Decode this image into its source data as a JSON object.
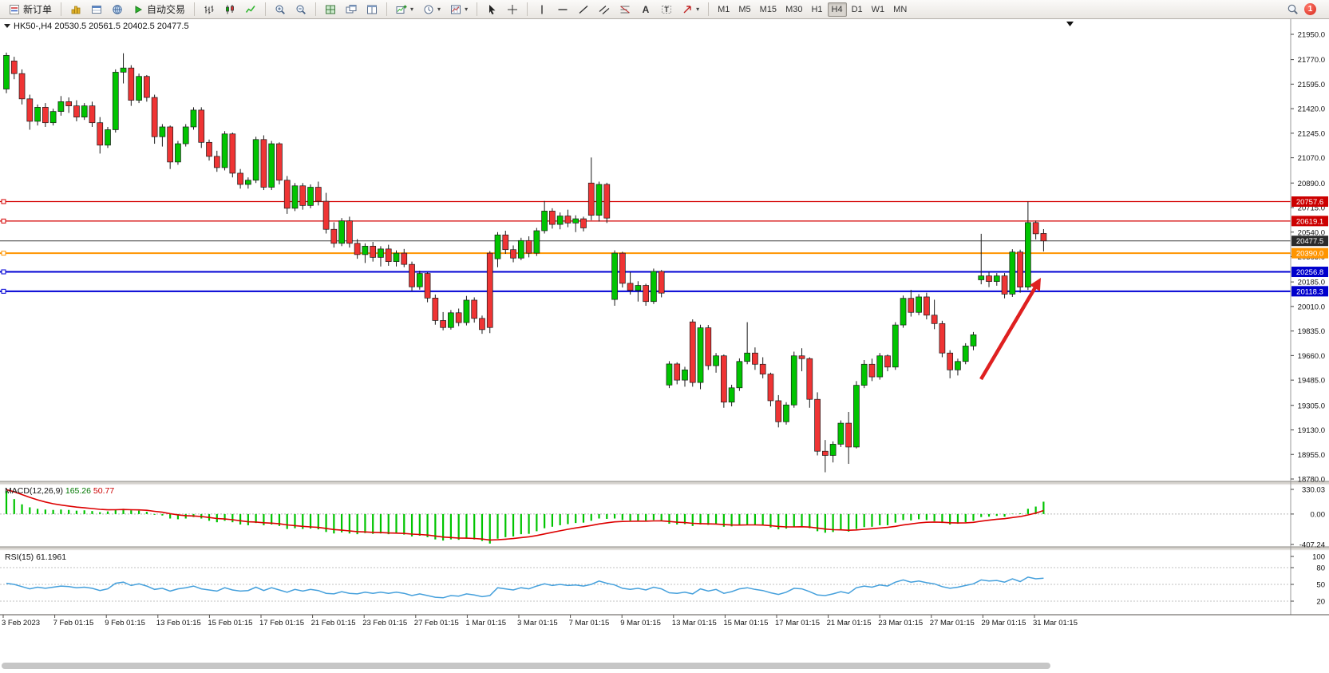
{
  "toolbar": {
    "new_order_label": "新订单",
    "auto_trading_label": "自动交易",
    "text_tool_label": "A",
    "label_tool_label": "T",
    "timeframes": [
      "M1",
      "M5",
      "M15",
      "M30",
      "H1",
      "H4",
      "D1",
      "W1",
      "MN"
    ],
    "active_timeframe": "H4",
    "notification_badge": "1"
  },
  "window": {
    "title_symbol": "HK50-,H4",
    "title_ohlc": "20530.5 20561.5 20402.5 20477.5"
  },
  "chart_data": {
    "type": "candlestick",
    "symbol": "HK50-,H4",
    "price_range": {
      "max": 21950.0,
      "min": 18780.0
    },
    "price_axis_labels": [
      "21950.0",
      "21770.0",
      "21595.0",
      "21420.0",
      "21245.0",
      "21070.0",
      "20890.0",
      "20715.0",
      "20540.0",
      "20365.0",
      "20185.0",
      "20010.0",
      "19835.0",
      "19660.0",
      "19485.0",
      "19305.0",
      "19130.0",
      "18955.0",
      "18780.0"
    ],
    "horizontal_lines": [
      {
        "value": 20757.6,
        "label": "20757.6",
        "color": "#d40000",
        "width": 1.2,
        "badge": "#cc0000",
        "handle": true
      },
      {
        "value": 20619.1,
        "label": "20619.1",
        "color": "#d40000",
        "width": 1.2,
        "badge": "#cc0000",
        "handle": true
      },
      {
        "value": 20477.5,
        "label": "20477.5",
        "color": "#3c3c3c",
        "width": 1,
        "badge": "#2b2b2b",
        "handle": false
      },
      {
        "value": 20390.0,
        "label": "20390.0",
        "color": "#ff9500",
        "width": 2,
        "badge": "#ff9500",
        "handle": true
      },
      {
        "value": 20256.8,
        "label": "20256.8",
        "color": "#0000d4",
        "width": 2,
        "badge": "#0000cc",
        "handle": true
      },
      {
        "value": 20118.3,
        "label": "20118.3",
        "color": "#0000d4",
        "width": 2,
        "badge": "#0000cc",
        "handle": true
      }
    ],
    "date_labels": [
      "3 Feb 2023",
      "7 Feb 01:15",
      "9 Feb 01:15",
      "13 Feb 01:15",
      "15 Feb 01:15",
      "17 Feb 01:15",
      "21 Feb 01:15",
      "23 Feb 01:15",
      "27 Feb 01:15",
      "1 Mar 01:15",
      "3 Mar 01:15",
      "7 Mar 01:15",
      "9 Mar 01:15",
      "13 Mar 01:15",
      "15 Mar 01:15",
      "17 Mar 01:15",
      "21 Mar 01:15",
      "23 Mar 01:15",
      "27 Mar 01:15",
      "29 Mar 01:15",
      "31 Mar 01:15"
    ],
    "candles_ohlc": [
      [
        21560,
        21820,
        21530,
        21800
      ],
      [
        21760,
        21790,
        21630,
        21670
      ],
      [
        21670,
        21700,
        21450,
        21490
      ],
      [
        21490,
        21520,
        21270,
        21330
      ],
      [
        21330,
        21450,
        21300,
        21430
      ],
      [
        21430,
        21460,
        21290,
        21320
      ],
      [
        21320,
        21420,
        21300,
        21400
      ],
      [
        21400,
        21510,
        21370,
        21470
      ],
      [
        21470,
        21500,
        21390,
        21440
      ],
      [
        21440,
        21480,
        21330,
        21360
      ],
      [
        21360,
        21460,
        21340,
        21440
      ],
      [
        21440,
        21470,
        21290,
        21320
      ],
      [
        21320,
        21360,
        21100,
        21160
      ],
      [
        21160,
        21290,
        21140,
        21270
      ],
      [
        21270,
        21700,
        21250,
        21680
      ],
      [
        21680,
        21815,
        21600,
        21710
      ],
      [
        21710,
        21730,
        21440,
        21480
      ],
      [
        21480,
        21670,
        21460,
        21650
      ],
      [
        21650,
        21660,
        21470,
        21500
      ],
      [
        21500,
        21520,
        21170,
        21220
      ],
      [
        21220,
        21310,
        21150,
        21290
      ],
      [
        21290,
        21300,
        20990,
        21040
      ],
      [
        21040,
        21190,
        21020,
        21170
      ],
      [
        21170,
        21310,
        21150,
        21290
      ],
      [
        21290,
        21430,
        21270,
        21410
      ],
      [
        21410,
        21430,
        21140,
        21180
      ],
      [
        21180,
        21200,
        21050,
        21080
      ],
      [
        21080,
        21120,
        20970,
        21000
      ],
      [
        21000,
        21260,
        20980,
        21240
      ],
      [
        21240,
        21250,
        20930,
        20960
      ],
      [
        20960,
        20990,
        20850,
        20880
      ],
      [
        20880,
        20930,
        20850,
        20910
      ],
      [
        20910,
        21220,
        20890,
        21200
      ],
      [
        21200,
        21230,
        20840,
        20860
      ],
      [
        20860,
        21190,
        20840,
        21170
      ],
      [
        21170,
        21180,
        20880,
        20910
      ],
      [
        20910,
        20940,
        20670,
        20710
      ],
      [
        20710,
        20890,
        20690,
        20870
      ],
      [
        20870,
        20890,
        20700,
        20730
      ],
      [
        20730,
        20880,
        20710,
        20860
      ],
      [
        20860,
        20900,
        20730,
        20760
      ],
      [
        20760,
        20820,
        20530,
        20560
      ],
      [
        20560,
        20610,
        20430,
        20460
      ],
      [
        20460,
        20640,
        20440,
        20620
      ],
      [
        20620,
        20650,
        20430,
        20460
      ],
      [
        20460,
        20490,
        20350,
        20380
      ],
      [
        20380,
        20460,
        20320,
        20440
      ],
      [
        20440,
        20470,
        20330,
        20360
      ],
      [
        20360,
        20440,
        20295,
        20420
      ],
      [
        20420,
        20450,
        20300,
        20330
      ],
      [
        20330,
        20410,
        20295,
        20390
      ],
      [
        20390,
        20420,
        20290,
        20310
      ],
      [
        20310,
        20330,
        20120,
        20150
      ],
      [
        20150,
        20265,
        20130,
        20245
      ],
      [
        20245,
        20255,
        20040,
        20070
      ],
      [
        20070,
        20095,
        19880,
        19910
      ],
      [
        19910,
        19970,
        19840,
        19860
      ],
      [
        19860,
        19985,
        19845,
        19965
      ],
      [
        19965,
        19995,
        19870,
        19895
      ],
      [
        19895,
        20085,
        19875,
        20055
      ],
      [
        20055,
        20075,
        19895,
        19925
      ],
      [
        19925,
        19945,
        19815,
        19845
      ],
      [
        20390,
        20405,
        19820,
        19860
      ],
      [
        20350,
        20540,
        20290,
        20520
      ],
      [
        20520,
        20550,
        20385,
        20415
      ],
      [
        20415,
        20445,
        20325,
        20355
      ],
      [
        20355,
        20500,
        20340,
        20480
      ],
      [
        20480,
        20510,
        20360,
        20390
      ],
      [
        20390,
        20570,
        20370,
        20550
      ],
      [
        20550,
        20762,
        20530,
        20690
      ],
      [
        20690,
        20710,
        20565,
        20595
      ],
      [
        20595,
        20680,
        20560,
        20655
      ],
      [
        20655,
        20700,
        20575,
        20605
      ],
      [
        20605,
        20660,
        20540,
        20635
      ],
      [
        20635,
        20650,
        20545,
        20570
      ],
      [
        20890,
        21072,
        20625,
        20660
      ],
      [
        20660,
        20900,
        20615,
        20880
      ],
      [
        20880,
        20892,
        20605,
        20640
      ],
      [
        20060,
        20410,
        20015,
        20390
      ],
      [
        20390,
        20400,
        20145,
        20175
      ],
      [
        20175,
        20255,
        20095,
        20125
      ],
      [
        20125,
        20190,
        20045,
        20160
      ],
      [
        20160,
        20172,
        20015,
        20045
      ],
      [
        20045,
        20280,
        20028,
        20260
      ],
      [
        20260,
        20270,
        20075,
        20105
      ],
      [
        19450,
        19620,
        19428,
        19600
      ],
      [
        19600,
        19612,
        19455,
        19485
      ],
      [
        19485,
        19580,
        19438,
        19558
      ],
      [
        19900,
        19918,
        19438,
        19468
      ],
      [
        19468,
        19880,
        19420,
        19858
      ],
      [
        19858,
        19878,
        19558,
        19588
      ],
      [
        19588,
        19678,
        19538,
        19658
      ],
      [
        19658,
        19668,
        19288,
        19328
      ],
      [
        19328,
        19452,
        19298,
        19430
      ],
      [
        19430,
        19640,
        19408,
        19618
      ],
      [
        19618,
        19898,
        19598,
        19678
      ],
      [
        19678,
        19718,
        19558,
        19598
      ],
      [
        19598,
        19648,
        19498,
        19528
      ],
      [
        19528,
        19538,
        19298,
        19338
      ],
      [
        19338,
        19378,
        19148,
        19188
      ],
      [
        19188,
        19328,
        19168,
        19308
      ],
      [
        19308,
        19688,
        19288,
        19658
      ],
      [
        19658,
        19712,
        19548,
        19638
      ],
      [
        19638,
        19648,
        19288,
        19348
      ],
      [
        19348,
        19398,
        18948,
        18978
      ],
      [
        18978,
        19058,
        18828,
        18948
      ],
      [
        18948,
        19048,
        18898,
        19028
      ],
      [
        19028,
        19198,
        19008,
        19178
      ],
      [
        19178,
        19258,
        18888,
        19008
      ],
      [
        19008,
        19478,
        18998,
        19448
      ],
      [
        19448,
        19628,
        19428,
        19598
      ],
      [
        19598,
        19638,
        19478,
        19508
      ],
      [
        19508,
        19678,
        19488,
        19658
      ],
      [
        19658,
        19668,
        19548,
        19578
      ],
      [
        19578,
        19898,
        19558,
        19878
      ],
      [
        19878,
        20088,
        19858,
        20068
      ],
      [
        20068,
        20128,
        19938,
        19968
      ],
      [
        19968,
        20098,
        19948,
        20078
      ],
      [
        20078,
        20108,
        19918,
        19948
      ],
      [
        19948,
        20058,
        19848,
        19888
      ],
      [
        19888,
        19908,
        19648,
        19678
      ],
      [
        19678,
        19698,
        19498,
        19558
      ],
      [
        19558,
        19638,
        19518,
        19618
      ],
      [
        19618,
        19748,
        19598,
        19728
      ],
      [
        19728,
        19828,
        19698,
        19808
      ],
      [
        20200,
        20528,
        20168,
        20228
      ],
      [
        20228,
        20258,
        20148,
        20188
      ],
      [
        20188,
        20248,
        20158,
        20228
      ],
      [
        20228,
        20248,
        20068,
        20098
      ],
      [
        20098,
        20418,
        20078,
        20398
      ],
      [
        20398,
        20415,
        20108,
        20148
      ],
      [
        20148,
        20758,
        20128,
        20608
      ],
      [
        20608,
        20622,
        20488,
        20528
      ],
      [
        20530.5,
        20561.5,
        20402.5,
        20477.5
      ]
    ],
    "indicators": {
      "macd": {
        "label": "MACD(12,26,9)",
        "main_value": "165.26",
        "signal_value": "50.77",
        "axis_labels": [
          "330.03",
          "0.00",
          "-407.24"
        ],
        "range": {
          "max": 330.03,
          "min": -407.24
        },
        "histogram": [
          310,
          200,
          130,
          90,
          70,
          60,
          55,
          60,
          55,
          45,
          50,
          40,
          25,
          35,
          60,
          70,
          50,
          45,
          30,
          -10,
          -20,
          -60,
          -70,
          -60,
          -40,
          -60,
          -90,
          -110,
          -90,
          -110,
          -140,
          -150,
          -120,
          -150,
          -140,
          -160,
          -200,
          -190,
          -200,
          -195,
          -205,
          -240,
          -260,
          -245,
          -260,
          -270,
          -255,
          -265,
          -260,
          -270,
          -262,
          -275,
          -300,
          -290,
          -310,
          -340,
          -355,
          -340,
          -345,
          -330,
          -340,
          -360,
          -395,
          -330,
          -310,
          -300,
          -270,
          -265,
          -230,
          -190,
          -170,
          -150,
          -135,
          -120,
          -115,
          -90,
          -60,
          -65,
          -60,
          -80,
          -90,
          -88,
          -95,
          -80,
          -90,
          -130,
          -140,
          -135,
          -160,
          -140,
          -145,
          -140,
          -170,
          -165,
          -150,
          -140,
          -145,
          -155,
          -180,
          -205,
          -195,
          -170,
          -165,
          -190,
          -230,
          -250,
          -240,
          -220,
          -235,
          -200,
          -175,
          -170,
          -150,
          -150,
          -115,
          -80,
          -85,
          -70,
          -80,
          -95,
          -120,
          -140,
          -130,
          -110,
          -90,
          -40,
          -35,
          -25,
          -35,
          5,
          10,
          70,
          100,
          165.26
        ]
      },
      "rsi": {
        "label": "RSI(15)",
        "value": "61.1961",
        "axis_labels": [
          "100",
          "80",
          "50",
          "20"
        ],
        "levels": [
          80,
          50,
          20
        ],
        "series": [
          52,
          50,
          46,
          42,
          45,
          43,
          45,
          47,
          46,
          44,
          45,
          43,
          39,
          42,
          52,
          54,
          48,
          51,
          47,
          41,
          43,
          38,
          42,
          44,
          47,
          42,
          40,
          38,
          44,
          40,
          38,
          39,
          45,
          39,
          44,
          40,
          36,
          41,
          38,
          41,
          39,
          34,
          33,
          37,
          34,
          33,
          36,
          34,
          36,
          34,
          36,
          34,
          30,
          33,
          30,
          27,
          26,
          30,
          29,
          33,
          31,
          28,
          30,
          44,
          42,
          40,
          44,
          42,
          47,
          51,
          48,
          50,
          48,
          49,
          47,
          50,
          56,
          52,
          49,
          43,
          41,
          43,
          40,
          45,
          42,
          35,
          34,
          36,
          33,
          42,
          38,
          41,
          34,
          37,
          42,
          44,
          41,
          39,
          35,
          32,
          36,
          43,
          42,
          37,
          31,
          30,
          33,
          37,
          34,
          44,
          47,
          45,
          49,
          47,
          54,
          58,
          54,
          56,
          53,
          51,
          46,
          43,
          45,
          48,
          51,
          58,
          56,
          57,
          54,
          60,
          55,
          63,
          60,
          61.2
        ]
      }
    }
  },
  "colors": {
    "bull": "#00c400",
    "bear": "#ef3434",
    "outline": "#1a1a1a",
    "macd_hist": "#00c400",
    "macd_signal": "#dd0000",
    "rsi_line": "#45a0dc",
    "arrow": "#df2020"
  }
}
